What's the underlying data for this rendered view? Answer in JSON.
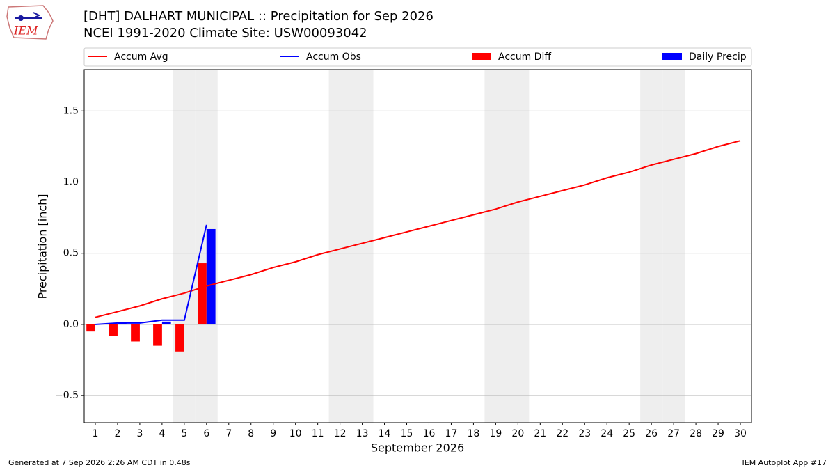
{
  "logo_text": "IEM",
  "chart_data": {
    "type": "combo",
    "title": "[DHT] DALHART MUNICIPAL :: Precipitation for Sep 2026",
    "subtitle": "NCEI 1991-2020 Climate Site: USW00093042",
    "x_label": "September 2026",
    "y_label": "Precipitation [inch]",
    "footer_left": "Generated at 7 Sep 2026 2:26 AM CDT in 0.48s",
    "footer_right": "IEM Autoplot App #17",
    "x": [
      1,
      2,
      3,
      4,
      5,
      6,
      7,
      8,
      9,
      10,
      11,
      12,
      13,
      14,
      15,
      16,
      17,
      18,
      19,
      20,
      21,
      22,
      23,
      24,
      25,
      26,
      27,
      28,
      29,
      30
    ],
    "xticks": [
      1,
      2,
      3,
      4,
      5,
      6,
      7,
      8,
      9,
      10,
      11,
      12,
      13,
      14,
      15,
      16,
      17,
      18,
      19,
      20,
      21,
      22,
      23,
      24,
      25,
      26,
      27,
      28,
      29,
      30
    ],
    "xlim": [
      0.5,
      30.5
    ],
    "ylim": [
      -0.69,
      1.79
    ],
    "yticks": [
      {
        "value": -0.5,
        "label": "−0.5"
      },
      {
        "value": 0,
        "label": "0.0"
      },
      {
        "value": 0.5,
        "label": "0.5"
      },
      {
        "value": 1,
        "label": "1.0"
      },
      {
        "value": 1.5,
        "label": "1.5"
      }
    ],
    "grid": true,
    "shaded_days": [
      5,
      6,
      12,
      13,
      19,
      20,
      26,
      27
    ],
    "shade_color": "#eeeeee",
    "series": [
      {
        "name": "Accum Avg",
        "type": "line",
        "color": "#ff0000",
        "values": [
          0.05,
          0.09,
          0.13,
          0.18,
          0.22,
          0.27,
          0.31,
          0.35,
          0.4,
          0.44,
          0.49,
          0.53,
          0.57,
          0.61,
          0.65,
          0.69,
          0.73,
          0.77,
          0.81,
          0.86,
          0.9,
          0.94,
          0.98,
          1.03,
          1.07,
          1.12,
          1.16,
          1.2,
          1.25,
          1.29
        ]
      },
      {
        "name": "Accum Obs",
        "type": "line",
        "color": "#0000ff",
        "values": [
          0,
          0.01,
          0.01,
          0.03,
          0.03,
          0.7,
          null,
          null,
          null,
          null,
          null,
          null,
          null,
          null,
          null,
          null,
          null,
          null,
          null,
          null,
          null,
          null,
          null,
          null,
          null,
          null,
          null,
          null,
          null,
          null
        ]
      },
      {
        "name": "Accum Diff",
        "type": "bar",
        "side": "left",
        "color": "#ff0000",
        "values": [
          -0.05,
          -0.08,
          -0.12,
          -0.15,
          -0.19,
          0.43,
          null,
          null,
          null,
          null,
          null,
          null,
          null,
          null,
          null,
          null,
          null,
          null,
          null,
          null,
          null,
          null,
          null,
          null,
          null,
          null,
          null,
          null,
          null,
          null
        ]
      },
      {
        "name": "Daily Precip",
        "type": "bar",
        "side": "right",
        "color": "#0000ff",
        "values": [
          0,
          0.01,
          0,
          0.02,
          0,
          0.67,
          null,
          null,
          null,
          null,
          null,
          null,
          null,
          null,
          null,
          null,
          null,
          null,
          null,
          null,
          null,
          null,
          null,
          null,
          null,
          null,
          null,
          null,
          null,
          null
        ]
      }
    ]
  }
}
